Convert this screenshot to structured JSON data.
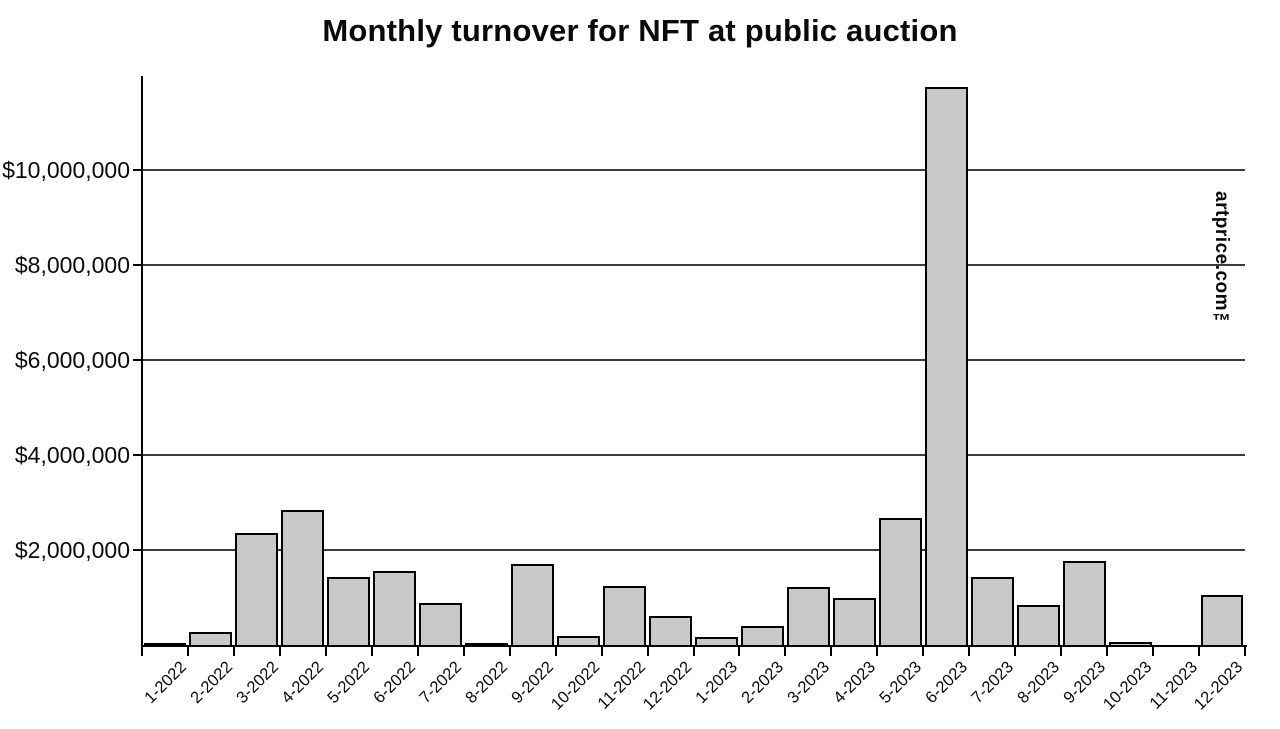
{
  "title": "Monthly turnover for NFT at public auction",
  "watermark": "artprice.com™",
  "chart_data": {
    "type": "bar",
    "title": "Monthly turnover for NFT at public auction",
    "categories": [
      "1-2022",
      "2-2022",
      "3-2022",
      "4-2022",
      "5-2022",
      "6-2022",
      "7-2022",
      "8-2022",
      "9-2022",
      "10-2022",
      "11-2022",
      "12-2022",
      "1-2023",
      "2-2023",
      "3-2023",
      "4-2023",
      "5-2023",
      "6-2023",
      "7-2023",
      "8-2023",
      "9-2023",
      "10-2023",
      "11-2023",
      "12-2023"
    ],
    "values": [
      50000,
      280000,
      2350000,
      2850000,
      1440000,
      1560000,
      890000,
      20000,
      1700000,
      200000,
      1250000,
      620000,
      160000,
      400000,
      1230000,
      980000,
      2680000,
      11750000,
      1440000,
      850000,
      1760000,
      60000,
      0,
      1050000
    ],
    "xlabel": "",
    "ylabel": "",
    "ylim": [
      0,
      12000000
    ],
    "yticks": [
      2000000,
      4000000,
      6000000,
      8000000,
      10000000
    ],
    "ytick_labels": [
      "$2,000,000",
      "$4,000,000",
      "$6,000,000",
      "$8,000,000",
      "$10,000,000"
    ],
    "grid": true,
    "legend": "none",
    "bar_fill": "#c9c9c9",
    "bar_stroke": "#000000",
    "grid_color": "#3c3c3c"
  }
}
